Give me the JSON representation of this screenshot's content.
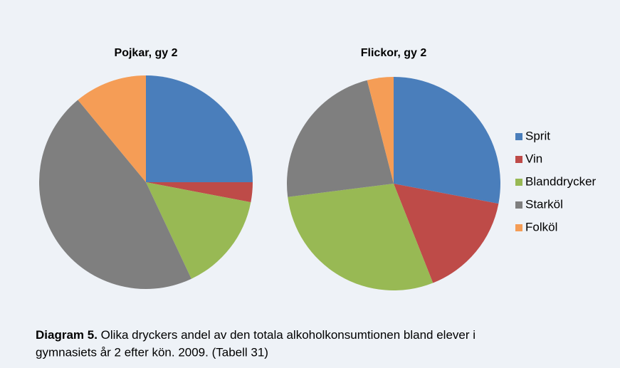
{
  "chart_data": [
    {
      "type": "pie",
      "title": "Pojkar, gy 2",
      "categories": [
        "Sprit",
        "Vin",
        "Blanddrycker",
        "Starköl",
        "Folköl"
      ],
      "values": [
        25,
        3,
        15,
        46,
        11
      ],
      "colors": [
        "#4a7ebb",
        "#be4b48",
        "#98b954",
        "#7f7f7f",
        "#f59d56"
      ],
      "legend": "right"
    },
    {
      "type": "pie",
      "title": "Flickor, gy 2",
      "categories": [
        "Sprit",
        "Vin",
        "Blanddrycker",
        "Starköl",
        "Folköl"
      ],
      "values": [
        28,
        16,
        29,
        23,
        4
      ],
      "colors": [
        "#4a7ebb",
        "#be4b48",
        "#98b954",
        "#7f7f7f",
        "#f59d56"
      ]
    }
  ],
  "caption": {
    "label": "Diagram 5.",
    "text": " Olika dryckers andel av den totala alkoholkonsumtionen bland elever i",
    "text2": "gymnasiets år 2 efter kön. 2009. (Tabell 31)"
  }
}
